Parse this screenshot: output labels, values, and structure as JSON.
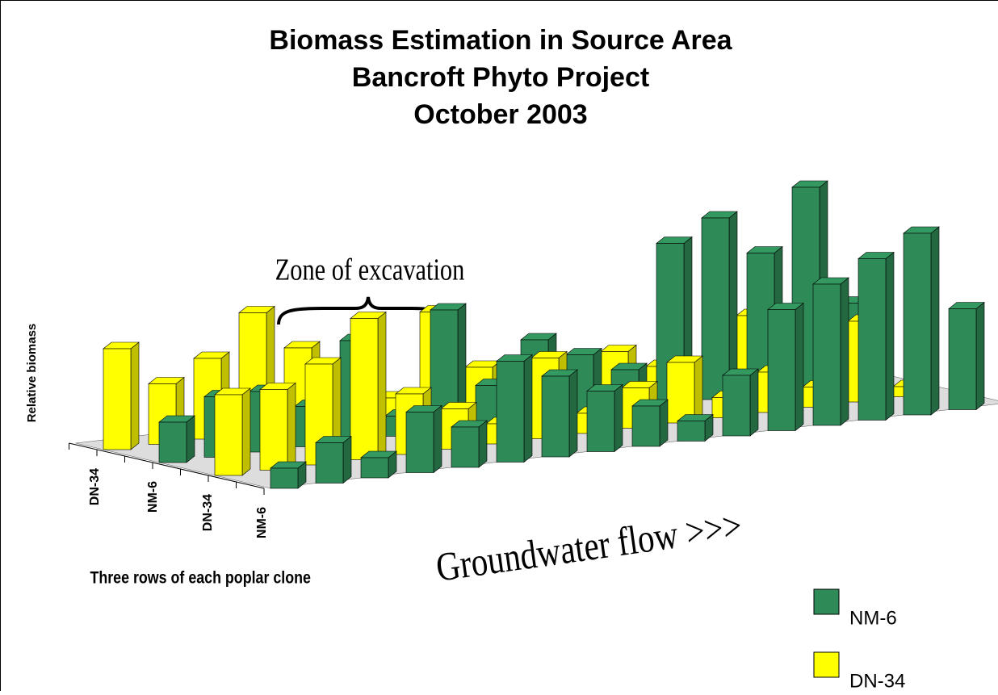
{
  "chart_data": {
    "type": "bar3d",
    "title_lines": [
      "Biomass Estimation in Source Area",
      "Bancroft Phyto Project",
      "October 2003"
    ],
    "y_label": "Relative biomass",
    "x_label": "Three rows of each poplar clone",
    "annotations": [
      "Zone of excavation",
      "Groundwater flow >>>"
    ],
    "row_labels": [
      "DN-34",
      "NM-6",
      "DN-34",
      "NM-6"
    ],
    "series": [
      {
        "name": "NM-6",
        "color": "#2e8b57",
        "values": [
          [
            2,
            3,
            3,
            2,
            5,
            1,
            6,
            2,
            4,
            3,
            2,
            8,
            9,
            7,
            10,
            4
          ],
          [
            1,
            2,
            1,
            3,
            2,
            5,
            4,
            3,
            2,
            1,
            3,
            6,
            7,
            8,
            9,
            5
          ]
        ]
      },
      {
        "name": "DN-34",
        "color": "#ffff00",
        "values": [
          [
            5,
            3,
            4,
            6,
            4,
            2,
            1,
            5,
            2,
            1,
            0.5,
            2,
            1,
            0.5,
            3,
            1
          ],
          [
            4,
            4,
            5,
            7,
            3,
            2,
            1,
            4,
            1,
            2,
            3,
            1,
            2,
            1,
            4,
            0.5
          ]
        ]
      }
    ]
  }
}
